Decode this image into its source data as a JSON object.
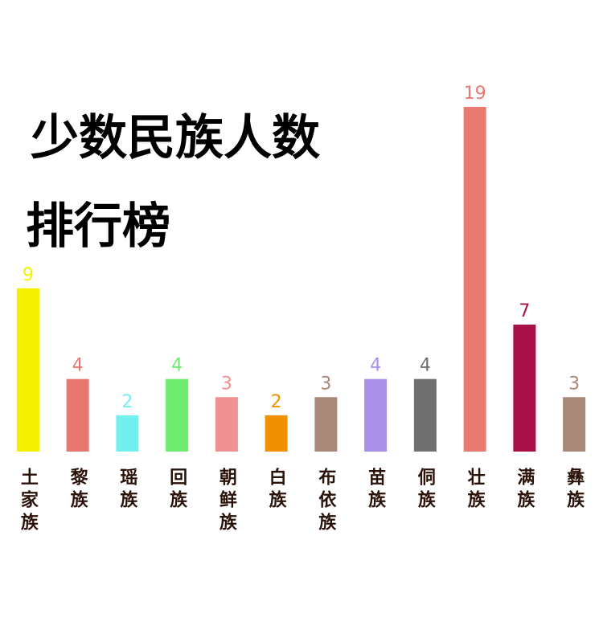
{
  "chart_data": {
    "type": "bar",
    "title": [
      "少数民族人数",
      "排行榜"
    ],
    "categories": [
      "土家族",
      "黎族",
      "瑶族",
      "回族",
      "朝鲜族",
      "白族",
      "布依族",
      "苗族",
      "侗族",
      "壮族",
      "满族",
      "彝族"
    ],
    "values": [
      9,
      4,
      2,
      4,
      3,
      2,
      3,
      4,
      4,
      19,
      7,
      3
    ],
    "colors": [
      "#f5ef00",
      "#e8776f",
      "#72f0ef",
      "#70ec70",
      "#f09090",
      "#f09000",
      "#a88878",
      "#a890e8",
      "#707070",
      "#e87a72",
      "#a81048",
      "#a88878"
    ],
    "ylim": [
      0,
      19
    ]
  }
}
